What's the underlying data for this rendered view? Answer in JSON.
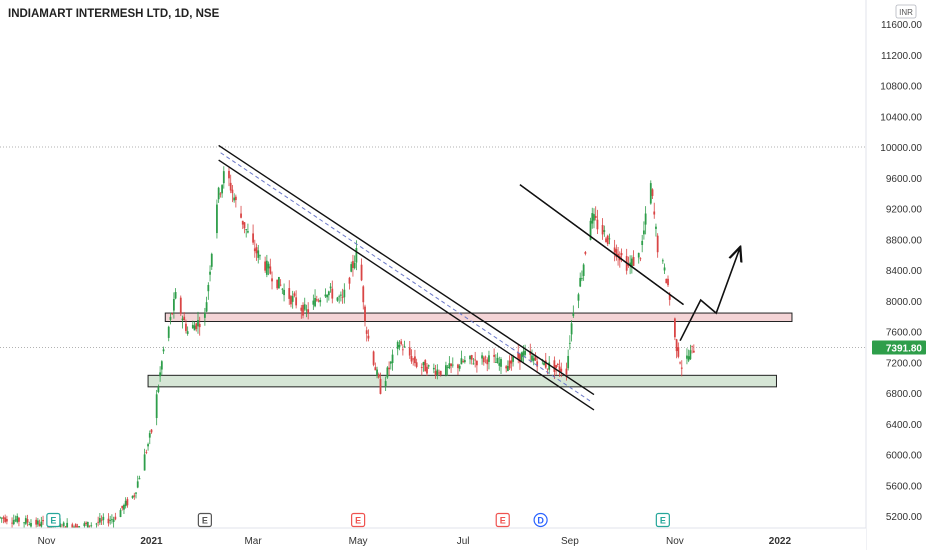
{
  "header": {
    "title": "INDIAMART INTERMESH LTD, 1D, NSE",
    "currency": "INR"
  },
  "colors": {
    "up": "#26a69a",
    "down": "#ef5350",
    "up_candle": "#2e9e4a",
    "down_candle": "#d94545",
    "price_tag": "#2e9e4a",
    "resistance_fill": "#f4d4d6",
    "support_fill": "#d6e6d6",
    "axis_text": "#333333",
    "grid": "#ffffff"
  },
  "chart_data": {
    "type": "candlestick",
    "title": "INDIAMART INTERMESH LTD, 1D, NSE",
    "y_axis": {
      "ticks": [
        "11600.00",
        "11200.00",
        "10800.00",
        "10400.00",
        "10000.00",
        "9600.00",
        "9200.00",
        "8800.00",
        "8400.00",
        "8000.00",
        "7600.00",
        "7200.00",
        "6800.00",
        "6400.00",
        "6000.00",
        "5600.00",
        "5200.00"
      ],
      "range": [
        5000,
        11750
      ],
      "unit": "INR"
    },
    "x_axis": {
      "labels": [
        "Nov",
        "2021",
        "Mar",
        "May",
        "Jul",
        "Sep",
        "Nov",
        "2022"
      ],
      "range": [
        "2020-10-05",
        "2022-02-20"
      ]
    },
    "last_price": "7391.80",
    "dotted_level": 10000,
    "events": [
      {
        "type": "E",
        "date": "2020-11-05",
        "color": "#26a69a"
      },
      {
        "type": "E",
        "date": "2021-02-01",
        "color": "#555555"
      },
      {
        "type": "E",
        "date": "2021-05-01",
        "color": "#ef5350"
      },
      {
        "type": "E",
        "date": "2021-07-24",
        "color": "#ef5350"
      },
      {
        "type": "D",
        "date": "2021-08-15",
        "color": "#2962ff"
      },
      {
        "type": "E",
        "date": "2021-10-25",
        "color": "#26a69a"
      }
    ],
    "zones": [
      {
        "name": "resistance",
        "from_date": "2021-01-09",
        "to_date": "2022-01-08",
        "low": 7730,
        "high": 7840
      },
      {
        "name": "support",
        "from_date": "2020-12-30",
        "to_date": "2021-12-30",
        "low": 6880,
        "high": 7030
      }
    ],
    "trendlines": [
      {
        "from": [
          "2021-02-09",
          10020
        ],
        "to": [
          "2021-09-15",
          6780
        ]
      },
      {
        "from": [
          "2021-02-09",
          9830
        ],
        "to": [
          "2021-09-15",
          6580
        ]
      },
      {
        "from": [
          "2021-08-03",
          9510
        ],
        "to": [
          "2021-11-06",
          7950
        ],
        "style": "dashed_mid"
      },
      {
        "from": [
          "2021-08-03",
          9510
        ],
        "to": [
          "2021-11-06",
          7950
        ]
      }
    ],
    "projection": [
      [
        "2021-11-04",
        7480
      ],
      [
        "2021-11-16",
        8010
      ],
      [
        "2021-11-25",
        7840
      ],
      [
        "2021-12-09",
        8700
      ]
    ],
    "price_path": [
      [
        "2020-10-05",
        5180
      ],
      [
        "2020-10-20",
        5130
      ],
      [
        "2020-11-05",
        5070
      ],
      [
        "2020-11-25",
        5080
      ],
      [
        "2020-12-10",
        5170
      ],
      [
        "2020-12-22",
        5480
      ],
      [
        "2021-01-01",
        6300
      ],
      [
        "2021-01-08",
        7350
      ],
      [
        "2021-01-15",
        8050
      ],
      [
        "2021-01-22",
        7600
      ],
      [
        "2021-02-01",
        7800
      ],
      [
        "2021-02-08",
        9300
      ],
      [
        "2021-02-13",
        9700
      ],
      [
        "2021-02-20",
        9200
      ],
      [
        "2021-03-01",
        8700
      ],
      [
        "2021-03-10",
        8400
      ],
      [
        "2021-03-20",
        8100
      ],
      [
        "2021-04-01",
        7850
      ],
      [
        "2021-04-12",
        8150
      ],
      [
        "2021-04-22",
        8000
      ],
      [
        "2021-05-01",
        8700
      ],
      [
        "2021-05-06",
        7600
      ],
      [
        "2021-05-14",
        6850
      ],
      [
        "2021-05-25",
        7450
      ],
      [
        "2021-06-05",
        7150
      ],
      [
        "2021-06-20",
        7080
      ],
      [
        "2021-07-01",
        7200
      ],
      [
        "2021-07-15",
        7250
      ],
      [
        "2021-07-25",
        7150
      ],
      [
        "2021-08-05",
        7300
      ],
      [
        "2021-08-20",
        7150
      ],
      [
        "2021-08-30",
        7100
      ],
      [
        "2021-09-03",
        7900
      ],
      [
        "2021-09-08",
        8350
      ],
      [
        "2021-09-13",
        9100
      ],
      [
        "2021-09-25",
        8750
      ],
      [
        "2021-10-05",
        8450
      ],
      [
        "2021-10-12",
        8600
      ],
      [
        "2021-10-18",
        9500
      ],
      [
        "2021-10-22",
        8700
      ],
      [
        "2021-10-28",
        8200
      ],
      [
        "2021-11-01",
        7500
      ],
      [
        "2021-11-05",
        7150
      ],
      [
        "2021-11-12",
        7380
      ]
    ]
  }
}
